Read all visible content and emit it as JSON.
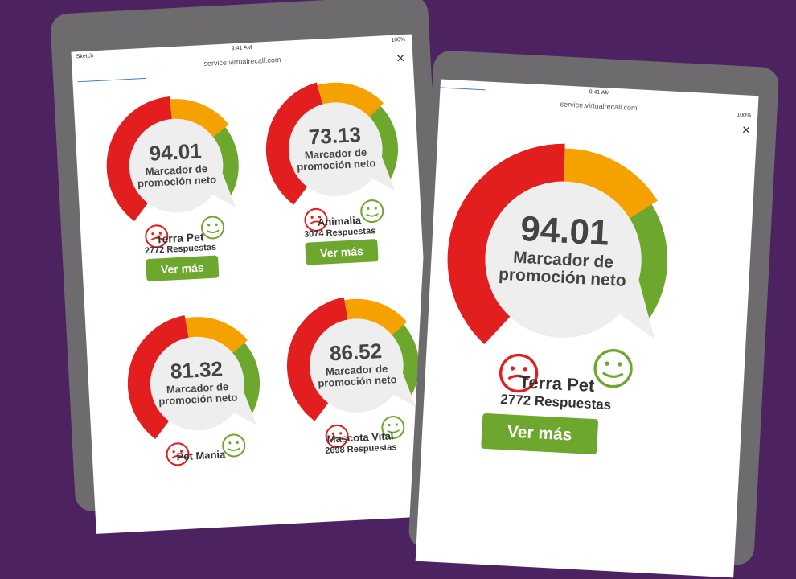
{
  "colors": {
    "background": "#4c2360",
    "red": "#e31e1e",
    "orange": "#f5a100",
    "green": "#6da72d",
    "bezel": "#6e6b6e"
  },
  "left_tablet": {
    "status": {
      "carrier": "Sketch",
      "time": "9:41 AM",
      "battery": "100%"
    },
    "url": "service.virtualrecall.com",
    "close_icon": "close-icon",
    "cards": [
      {
        "score": "94.01",
        "label": "Marcador de promoción neto",
        "name": "Terra Pet",
        "responses": "2772 Respuestas",
        "button": "Ver más"
      },
      {
        "score": "73.13",
        "label": "Marcador de promoción neto",
        "name": "Animalia",
        "responses": "3074 Respuestas",
        "button": "Ver más"
      },
      {
        "score": "81.32",
        "label": "Marcador de promoción neto",
        "name": "Pet Mania",
        "responses": "",
        "button": ""
      },
      {
        "score": "86.52",
        "label": "Marcador de promoción neto",
        "name": "Mascota Vital",
        "responses": "2698 Respuestas",
        "button": ""
      }
    ]
  },
  "right_tablet": {
    "status": {
      "carrier": "",
      "time": "9:41 AM",
      "battery": "100%"
    },
    "url": "service.virtualrecall.com",
    "close_icon": "close-icon",
    "card": {
      "score": "94.01",
      "label": "Marcador de promoción neto",
      "name": "Terra Pet",
      "responses": "2772 Respuestas",
      "button": "Ver más"
    }
  }
}
